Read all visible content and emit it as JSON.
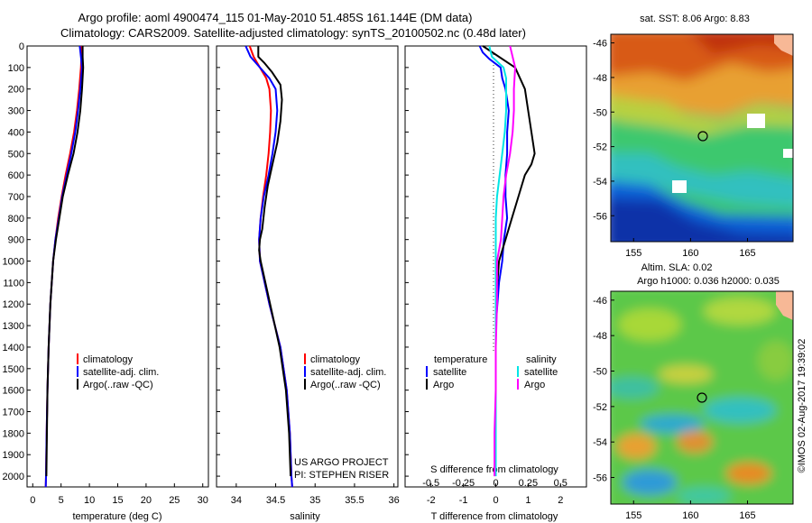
{
  "title_line1": "Argo profile: aoml 4900474_115 01-May-2010 51.485S 161.144E (DM data)",
  "title_line2": "Climatology: CARS2009. Satellite-adjusted climatology: synTS_20100502.nc (0.48d later)",
  "depth_ticks": [
    "0",
    "100",
    "200",
    "300",
    "400",
    "500",
    "600",
    "700",
    "800",
    "900",
    "1000",
    "1100",
    "1200",
    "1300",
    "1400",
    "1500",
    "1600",
    "1700",
    "1800",
    "1900",
    "2000"
  ],
  "colors": {
    "climatology": "#ff0000",
    "satellite": "#0000ff",
    "argo": "#000000",
    "sal_satellite": "#00e5e5",
    "sal_argo": "#ff00ff"
  },
  "panel1": {
    "xlabel": "temperature (deg C)",
    "xticks": [
      "0",
      "5",
      "10",
      "15",
      "20",
      "25",
      "30"
    ],
    "legend": [
      "climatology",
      "satellite-adj. clim.",
      "Argo(..raw -QC)"
    ]
  },
  "panel2": {
    "xlabel": "salinity",
    "xticks": [
      "34",
      "34.5",
      "35",
      "35.5",
      "36"
    ],
    "legend": [
      "climatology",
      "satellite-adj. clim.",
      "Argo(..raw -QC)"
    ],
    "credit1": "US ARGO PROJECT",
    "credit2": "PI: STEPHEN RISER"
  },
  "panel3": {
    "xlabel": "T difference from climatology",
    "xticks": [
      "-2",
      "-1",
      "0",
      "1",
      "2"
    ],
    "top_label": "S difference from climatology",
    "top_ticks": [
      "-0.5",
      "-0.25",
      "0",
      "0.25",
      "0.5"
    ],
    "leg_temp_title": "temperature",
    "leg_sal_title": "salinity",
    "leg_temp": [
      "satellite",
      "Argo"
    ],
    "leg_sal": [
      "satellite",
      "Argo"
    ]
  },
  "map1": {
    "title": "sat. SST: 8.06 Argo: 8.83",
    "yticks": [
      "-46",
      "-48",
      "-50",
      "-52",
      "-54",
      "-56"
    ],
    "xticks": [
      "155",
      "160",
      "165"
    ]
  },
  "map2": {
    "title1": "Altim. SLA: 0.02",
    "title2": "Argo h1000: 0.036 h2000: 0.035",
    "yticks": [
      "-46",
      "-48",
      "-50",
      "-52",
      "-54",
      "-56"
    ],
    "xticks": [
      "155",
      "160",
      "165"
    ]
  },
  "stamp": "©IMOS 02-Aug-2017 19:39:02",
  "chart_data": [
    {
      "type": "line",
      "xlabel": "temperature (deg C)",
      "ylabel": "",
      "xlim": [
        -1,
        31
      ],
      "ylim": [
        2050,
        0
      ],
      "series": [
        {
          "name": "climatology",
          "depth": [
            0,
            50,
            100,
            200,
            300,
            400,
            500,
            600,
            700,
            800,
            900,
            1000,
            1200,
            1400,
            1600,
            1800,
            2000,
            2050
          ],
          "values": [
            8.6,
            8.6,
            8.5,
            8.2,
            7.8,
            7.3,
            6.6,
            5.8,
            5.1,
            4.5,
            4.0,
            3.6,
            3.1,
            2.8,
            2.6,
            2.45,
            2.35,
            2.3
          ]
        },
        {
          "name": "satellite-adj. clim.",
          "depth": [
            0,
            50,
            100,
            200,
            300,
            400,
            500,
            600,
            700,
            800,
            900,
            1000,
            1200,
            1400,
            1600,
            1800,
            2000,
            2050
          ],
          "values": [
            8.3,
            8.5,
            8.7,
            8.4,
            8.0,
            7.5,
            6.8,
            6.0,
            5.2,
            4.6,
            4.0,
            3.6,
            3.1,
            2.8,
            2.6,
            2.45,
            2.35,
            2.3
          ]
        },
        {
          "name": "Argo(..raw -QC)",
          "depth": [
            0,
            50,
            100,
            200,
            300,
            400,
            500,
            600,
            700,
            800,
            900,
            1000,
            1200,
            1400,
            1600,
            1800,
            2000
          ],
          "values": [
            8.8,
            8.8,
            8.9,
            8.7,
            8.4,
            7.9,
            7.2,
            6.2,
            5.3,
            4.7,
            4.1,
            3.6,
            3.1,
            2.8,
            2.6,
            2.5,
            2.4
          ]
        }
      ]
    },
    {
      "type": "line",
      "xlabel": "salinity",
      "ylabel": "",
      "xlim": [
        33.75,
        36.05
      ],
      "ylim": [
        2050,
        0
      ],
      "series": [
        {
          "name": "climatology",
          "depth": [
            0,
            50,
            100,
            150,
            200,
            300,
            400,
            500,
            600,
            700,
            800,
            900,
            1000,
            1200,
            1400,
            1600,
            1800,
            2000,
            2050
          ],
          "values": [
            34.17,
            34.22,
            34.3,
            34.38,
            34.42,
            34.44,
            34.43,
            34.41,
            34.38,
            34.34,
            34.31,
            34.29,
            34.3,
            34.42,
            34.56,
            34.64,
            34.68,
            34.7,
            34.71
          ]
        },
        {
          "name": "satellite-adj. clim.",
          "depth": [
            0,
            50,
            100,
            150,
            200,
            300,
            400,
            500,
            600,
            700,
            800,
            900,
            1000,
            1200,
            1400,
            1600,
            1800,
            2000,
            2050
          ],
          "values": [
            34.12,
            34.18,
            34.3,
            34.42,
            34.5,
            34.52,
            34.5,
            34.46,
            34.41,
            34.35,
            34.31,
            34.29,
            34.3,
            34.42,
            34.56,
            34.64,
            34.68,
            34.7,
            34.71
          ]
        },
        {
          "name": "Argo(..raw -QC)",
          "depth": [
            0,
            50,
            80,
            120,
            180,
            250,
            350,
            450,
            550,
            650,
            750,
            850,
            900,
            950,
            1000,
            1200,
            1400,
            1600,
            1800,
            2000
          ],
          "values": [
            34.28,
            34.28,
            34.36,
            34.45,
            34.56,
            34.58,
            34.56,
            34.52,
            34.46,
            34.4,
            34.36,
            34.33,
            34.3,
            34.29,
            34.31,
            34.43,
            34.55,
            34.63,
            34.67,
            34.69
          ]
        }
      ]
    },
    {
      "type": "line",
      "xlabel": "T difference from climatology",
      "xlim": [
        -2.8,
        2.8
      ],
      "ylim": [
        2050,
        0
      ],
      "series": [
        {
          "name": "satellite (temperature)",
          "depth": [
            0,
            30,
            60,
            100,
            150,
            200,
            300,
            400,
            500,
            600,
            700,
            800,
            900,
            1000,
            1100,
            1200,
            1300,
            1400
          ],
          "values": [
            -0.5,
            -0.4,
            -0.2,
            0.15,
            0.2,
            0.3,
            0.4,
            0.35,
            0.35,
            0.3,
            0.3,
            0.35,
            0.25,
            0.2,
            0.1,
            0.05,
            0.0,
            0.0
          ]
        },
        {
          "name": "Argo (temperature)",
          "depth": [
            0,
            100,
            200,
            300,
            400,
            500,
            550,
            600,
            650,
            700,
            800,
            900,
            950,
            1000,
            1100,
            1200
          ],
          "values": [
            -0.4,
            0.6,
            0.9,
            1.0,
            1.1,
            1.2,
            1.1,
            0.9,
            0.8,
            0.7,
            0.5,
            0.3,
            0.2,
            0.1,
            0.05,
            0.0
          ]
        }
      ]
    },
    {
      "type": "line",
      "xlabel": "S difference from climatology",
      "xlim": [
        -0.7,
        0.7
      ],
      "ylim": [
        2050,
        0
      ],
      "series": [
        {
          "name": "satellite (salinity)",
          "depth": [
            0,
            50,
            100,
            150,
            200,
            300,
            400,
            500,
            600,
            700,
            800,
            900,
            1000,
            1200,
            1400,
            1600,
            1800,
            2000
          ],
          "values": [
            -0.05,
            -0.03,
            0.06,
            0.08,
            0.08,
            0.08,
            0.07,
            0.05,
            0.03,
            0.01,
            0.0,
            0.0,
            0.0,
            0.0,
            0.0,
            0.0,
            0.0,
            0.0
          ]
        },
        {
          "name": "Argo (salinity)",
          "depth": [
            0,
            100,
            200,
            300,
            400,
            500,
            600,
            700,
            800,
            900,
            1000,
            1200,
            1400,
            1600,
            1800,
            2000
          ],
          "values": [
            0.11,
            0.15,
            0.14,
            0.14,
            0.13,
            0.11,
            0.08,
            0.06,
            0.05,
            0.04,
            0.01,
            0.01,
            0.0,
            0.0,
            -0.01,
            -0.01
          ]
        }
      ]
    },
    {
      "type": "heatmap",
      "title": "sat. SST: 8.06 Argo: 8.83",
      "xlim": [
        153,
        169
      ],
      "ylim": [
        -57.5,
        -45.5
      ],
      "profile_position": [
        161.144,
        -51.485
      ]
    },
    {
      "type": "heatmap",
      "title": "Altim. SLA: 0.02",
      "subtitle": "Argo h1000: 0.036 h2000: 0.035",
      "xlim": [
        153,
        169
      ],
      "ylim": [
        -57.5,
        -45.5
      ],
      "profile_position": [
        161.144,
        -51.485
      ]
    }
  ]
}
